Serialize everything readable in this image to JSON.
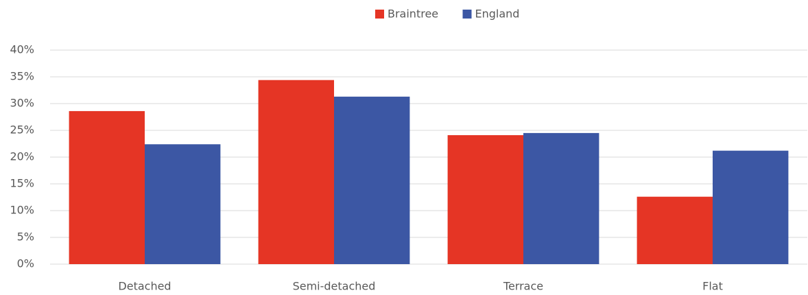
{
  "chart_data": {
    "type": "bar",
    "categories": [
      "Detached",
      "Semi-detached",
      "Terrace",
      "Flat"
    ],
    "series": [
      {
        "name": "Braintree",
        "color": "#e53525",
        "values": [
          28.6,
          34.4,
          24.1,
          12.6
        ]
      },
      {
        "name": "England",
        "color": "#3c57a4",
        "values": [
          22.4,
          31.3,
          24.5,
          21.2
        ]
      }
    ],
    "ylim": [
      0,
      40
    ],
    "yticks": [
      {
        "value": 0,
        "label": "0%"
      },
      {
        "value": 5,
        "label": "5%"
      },
      {
        "value": 10,
        "label": "10%"
      },
      {
        "value": 15,
        "label": "15%"
      },
      {
        "value": 20,
        "label": "20%"
      },
      {
        "value": 25,
        "label": "25%"
      },
      {
        "value": 30,
        "label": "30%"
      },
      {
        "value": 35,
        "label": "35%"
      },
      {
        "value": 40,
        "label": "40%"
      }
    ],
    "grid": true,
    "legend": "top"
  }
}
